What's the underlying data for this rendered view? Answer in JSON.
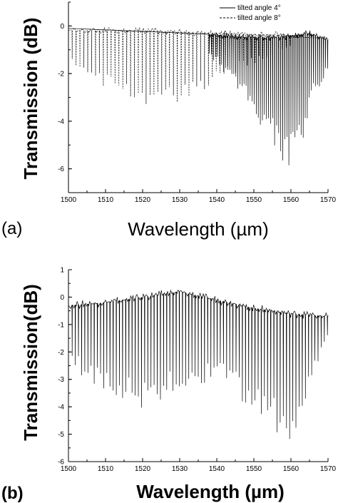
{
  "chart_data": [
    {
      "type": "line",
      "panel_label": "(a)",
      "xlabel": "Wavelength (µm)",
      "ylabel": "Transmission (dB)",
      "xlim": [
        1500,
        1570
      ],
      "ylim": [
        -7,
        1
      ],
      "xticks": [
        "1500",
        "1510",
        "1520",
        "1530",
        "1540",
        "1550",
        "1560",
        "1570"
      ],
      "yticks": [
        "0",
        "-2",
        "-4",
        "-6"
      ],
      "ytick_values": [
        0,
        -2,
        -4,
        -6
      ],
      "legend_position": "top-right",
      "series": [
        {
          "name": "tilted angle 4°",
          "style": "solid",
          "color": "#000000",
          "baseline": [
            [
              1500,
              -0.1
            ],
            [
              1520,
              -0.15
            ],
            [
              1535,
              -0.3
            ],
            [
              1545,
              -0.45
            ],
            [
              1555,
              -0.5
            ],
            [
              1565,
              -0.3
            ],
            [
              1570,
              -0.6
            ]
          ],
          "dip_range": [
            1538,
            1570
          ],
          "dip_spacing": 0.55,
          "dip_envelope": [
            [
              1538,
              -1.3
            ],
            [
              1545,
              -2.5
            ],
            [
              1550,
              -3.8
            ],
            [
              1555,
              -5.0
            ],
            [
              1559,
              -6.2
            ],
            [
              1563,
              -5.2
            ],
            [
              1566,
              -3.2
            ],
            [
              1570,
              -1.8
            ]
          ]
        },
        {
          "name": "tilted angle 8°",
          "style": "dashed",
          "color": "#000000",
          "baseline": [
            [
              1500,
              -0.2
            ],
            [
              1520,
              -0.2
            ],
            [
              1540,
              -0.3
            ],
            [
              1560,
              -0.4
            ],
            [
              1570,
              -0.5
            ]
          ],
          "dip_range": [
            1501,
            1560
          ],
          "dip_spacing": 1.05,
          "dip_envelope": [
            [
              1501,
              -1.6
            ],
            [
              1505,
              -2.2
            ],
            [
              1510,
              -2.6
            ],
            [
              1515,
              -3.0
            ],
            [
              1520,
              -3.4
            ],
            [
              1525,
              -3.5
            ],
            [
              1530,
              -3.3
            ],
            [
              1535,
              -2.9
            ],
            [
              1540,
              -2.4
            ],
            [
              1545,
              -2.0
            ],
            [
              1550,
              -1.6
            ],
            [
              1555,
              -1.2
            ],
            [
              1560,
              -0.9
            ]
          ]
        }
      ]
    },
    {
      "type": "line",
      "panel_label": "(b)",
      "xlabel": "Wavelength (µm)",
      "ylabel": "Transmission(dB)",
      "xlim": [
        1500,
        1570
      ],
      "ylim": [
        -6,
        1
      ],
      "xticks": [
        "1500",
        "1510",
        "1520",
        "1530",
        "1540",
        "1550",
        "1560",
        "1570"
      ],
      "yticks": [
        "1",
        "0",
        "-1",
        "-2",
        "-3",
        "-4",
        "-5",
        "-6"
      ],
      "ytick_values": [
        1,
        0,
        -1,
        -2,
        -3,
        -4,
        -5,
        -6
      ],
      "series": [
        {
          "style": "solid",
          "color": "#000000",
          "baseline": [
            [
              1500,
              -0.3
            ],
            [
              1510,
              -0.2
            ],
            [
              1520,
              0.0
            ],
            [
              1530,
              0.2
            ],
            [
              1540,
              -0.1
            ],
            [
              1550,
              -0.4
            ],
            [
              1560,
              -0.6
            ],
            [
              1570,
              -0.7
            ]
          ],
          "dip_range": [
            1501,
            1570
          ],
          "dip_spacing": 0.85,
          "dip_envelope": [
            [
              1501,
              -2.5
            ],
            [
              1505,
              -3.2
            ],
            [
              1510,
              -3.6
            ],
            [
              1515,
              -3.8
            ],
            [
              1520,
              -4.1
            ],
            [
              1525,
              -3.8
            ],
            [
              1530,
              -3.4
            ],
            [
              1535,
              -3.2
            ],
            [
              1540,
              -3.0
            ],
            [
              1545,
              -3.6
            ],
            [
              1550,
              -4.2
            ],
            [
              1555,
              -4.8
            ],
            [
              1560,
              -5.4
            ],
            [
              1563,
              -4.6
            ],
            [
              1566,
              -2.8
            ],
            [
              1570,
              -1.5
            ]
          ]
        }
      ]
    }
  ]
}
